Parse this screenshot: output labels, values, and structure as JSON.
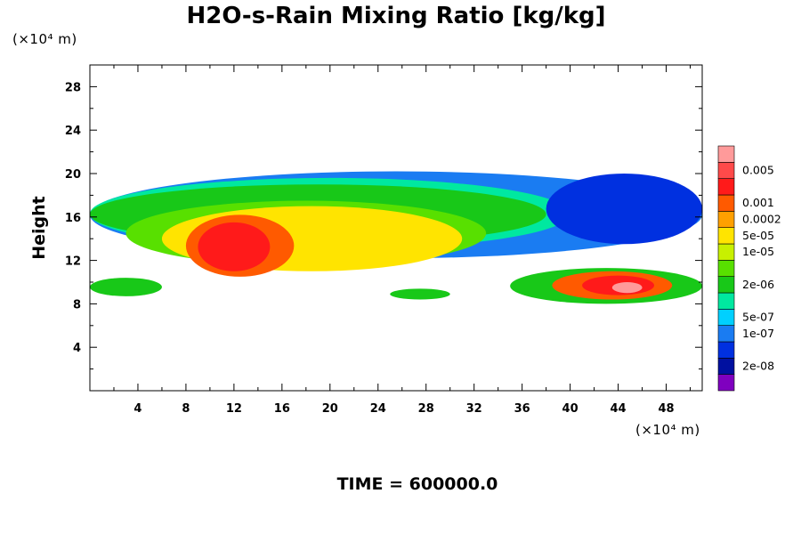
{
  "chart_data": {
    "type": "heatmap",
    "title": "H2O-s-Rain Mixing Ratio [kg/kg]",
    "ylabel": "Height",
    "xlabel": "",
    "x_unit_label": "(×10⁴ m)",
    "y_unit_label": "(×10⁴ m)",
    "xlim": [
      0,
      51
    ],
    "ylim": [
      0,
      30
    ],
    "x_ticks": [
      4,
      8,
      12,
      16,
      20,
      24,
      28,
      32,
      36,
      40,
      44,
      48
    ],
    "x_tick_labels": [
      "4",
      "8",
      "12",
      "16",
      "20",
      "24",
      "28",
      "32",
      "36",
      "40",
      "44",
      "48"
    ],
    "y_ticks": [
      4,
      8,
      12,
      16,
      20,
      24,
      28
    ],
    "y_tick_labels": [
      "4",
      "8",
      "12",
      "16",
      "20",
      "24",
      "28"
    ],
    "colorbar": {
      "levels": [
        "2e-08",
        "1e-07",
        "5e-07",
        "2e-06",
        "1e-05",
        "5e-05",
        "0.0002",
        "0.001",
        "0.005"
      ],
      "colors": [
        "#7f00bf",
        "#0010a0",
        "#0030e0",
        "#1a7cf2",
        "#00d0ff",
        "#00e8a0",
        "#18c818",
        "#58e000",
        "#c8f000",
        "#ffe400",
        "#ffa000",
        "#ff5a00",
        "#ff1a1a",
        "#ff4a4a",
        "#ff9a9a"
      ]
    },
    "time_label": "TIME = 600000.0",
    "field_regions": [
      {
        "x": [
          0,
          51
        ],
        "y": [
          12.2,
          20.2
        ],
        "level": 3
      },
      {
        "x": [
          0,
          40
        ],
        "y": [
          13,
          19.6
        ],
        "level": 5
      },
      {
        "x": [
          0,
          38
        ],
        "y": [
          13.5,
          19
        ],
        "level": 6
      },
      {
        "x": [
          3,
          33
        ],
        "y": [
          11.5,
          17.5
        ],
        "level": 7
      },
      {
        "x": [
          6,
          31
        ],
        "y": [
          11,
          17
        ],
        "level": 9
      },
      {
        "x": [
          8,
          17
        ],
        "y": [
          10.5,
          16.2
        ],
        "level": 11
      },
      {
        "x": [
          9,
          15
        ],
        "y": [
          11,
          15.5
        ],
        "level": 12
      },
      {
        "x": [
          0,
          6
        ],
        "y": [
          8.7,
          10.4
        ],
        "level": 6
      },
      {
        "x": [
          25,
          30
        ],
        "y": [
          8.4,
          9.4
        ],
        "level": 6
      },
      {
        "x": [
          35,
          51
        ],
        "y": [
          8.0,
          11.3
        ],
        "level": 6
      },
      {
        "x": [
          38.5,
          48.5
        ],
        "y": [
          8.4,
          11.0
        ],
        "level": 11
      },
      {
        "x": [
          41,
          47
        ],
        "y": [
          8.8,
          10.6
        ],
        "level": 12
      },
      {
        "x": [
          43.5,
          46
        ],
        "y": [
          9.0,
          10.0
        ],
        "level": 14
      },
      {
        "x": [
          38,
          51
        ],
        "y": [
          13.5,
          20
        ],
        "level": 2
      }
    ]
  }
}
